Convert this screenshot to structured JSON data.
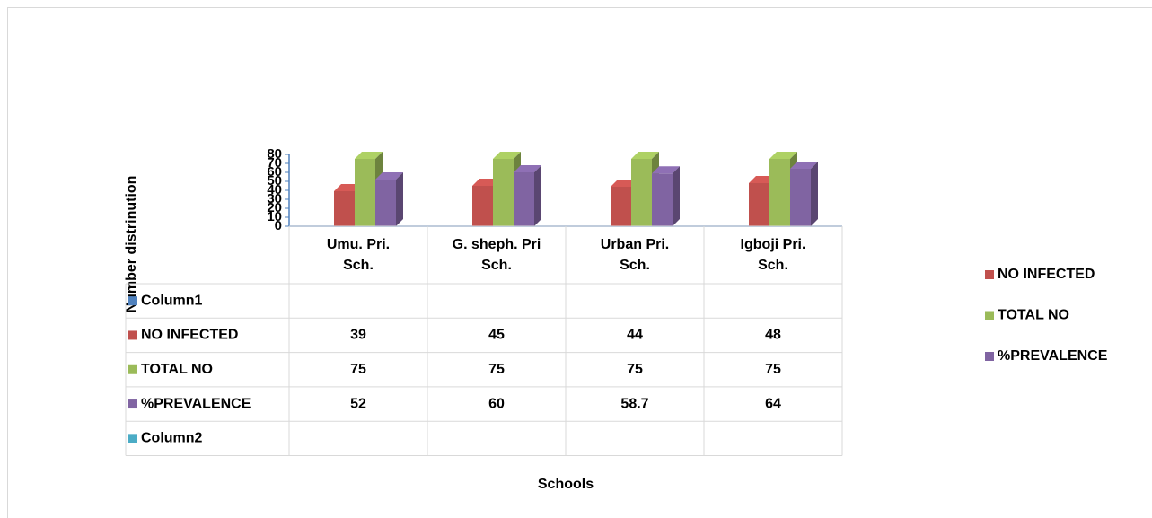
{
  "chart_data": {
    "type": "bar3d",
    "categories": [
      "Umu. Pri. Sch.",
      "G. sheph. Pri Sch.",
      "Urban Pri. Sch.",
      "Igboji Pri. Sch."
    ],
    "series": [
      {
        "name": "Column1",
        "color": "#4f81bd",
        "values": [
          null,
          null,
          null,
          null
        ]
      },
      {
        "name": "NO INFECTED",
        "color": "#c0504d",
        "values": [
          39,
          45,
          44,
          48
        ]
      },
      {
        "name": "TOTAL NO",
        "color": "#9bbb59",
        "values": [
          75,
          75,
          75,
          75
        ]
      },
      {
        "name": "%PREVALENCE",
        "color": "#8064a2",
        "values": [
          52,
          60,
          58.7,
          64
        ]
      },
      {
        "name": "Column2",
        "color": "#4bacc6",
        "values": [
          null,
          null,
          null,
          null
        ]
      }
    ],
    "ylim": [
      0,
      80
    ],
    "yticks": [
      0,
      10,
      20,
      30,
      40,
      50,
      60,
      70,
      80
    ],
    "ylabel": "Number distrinution",
    "xlabel": "Schools",
    "legend": "right",
    "data_table": true
  }
}
